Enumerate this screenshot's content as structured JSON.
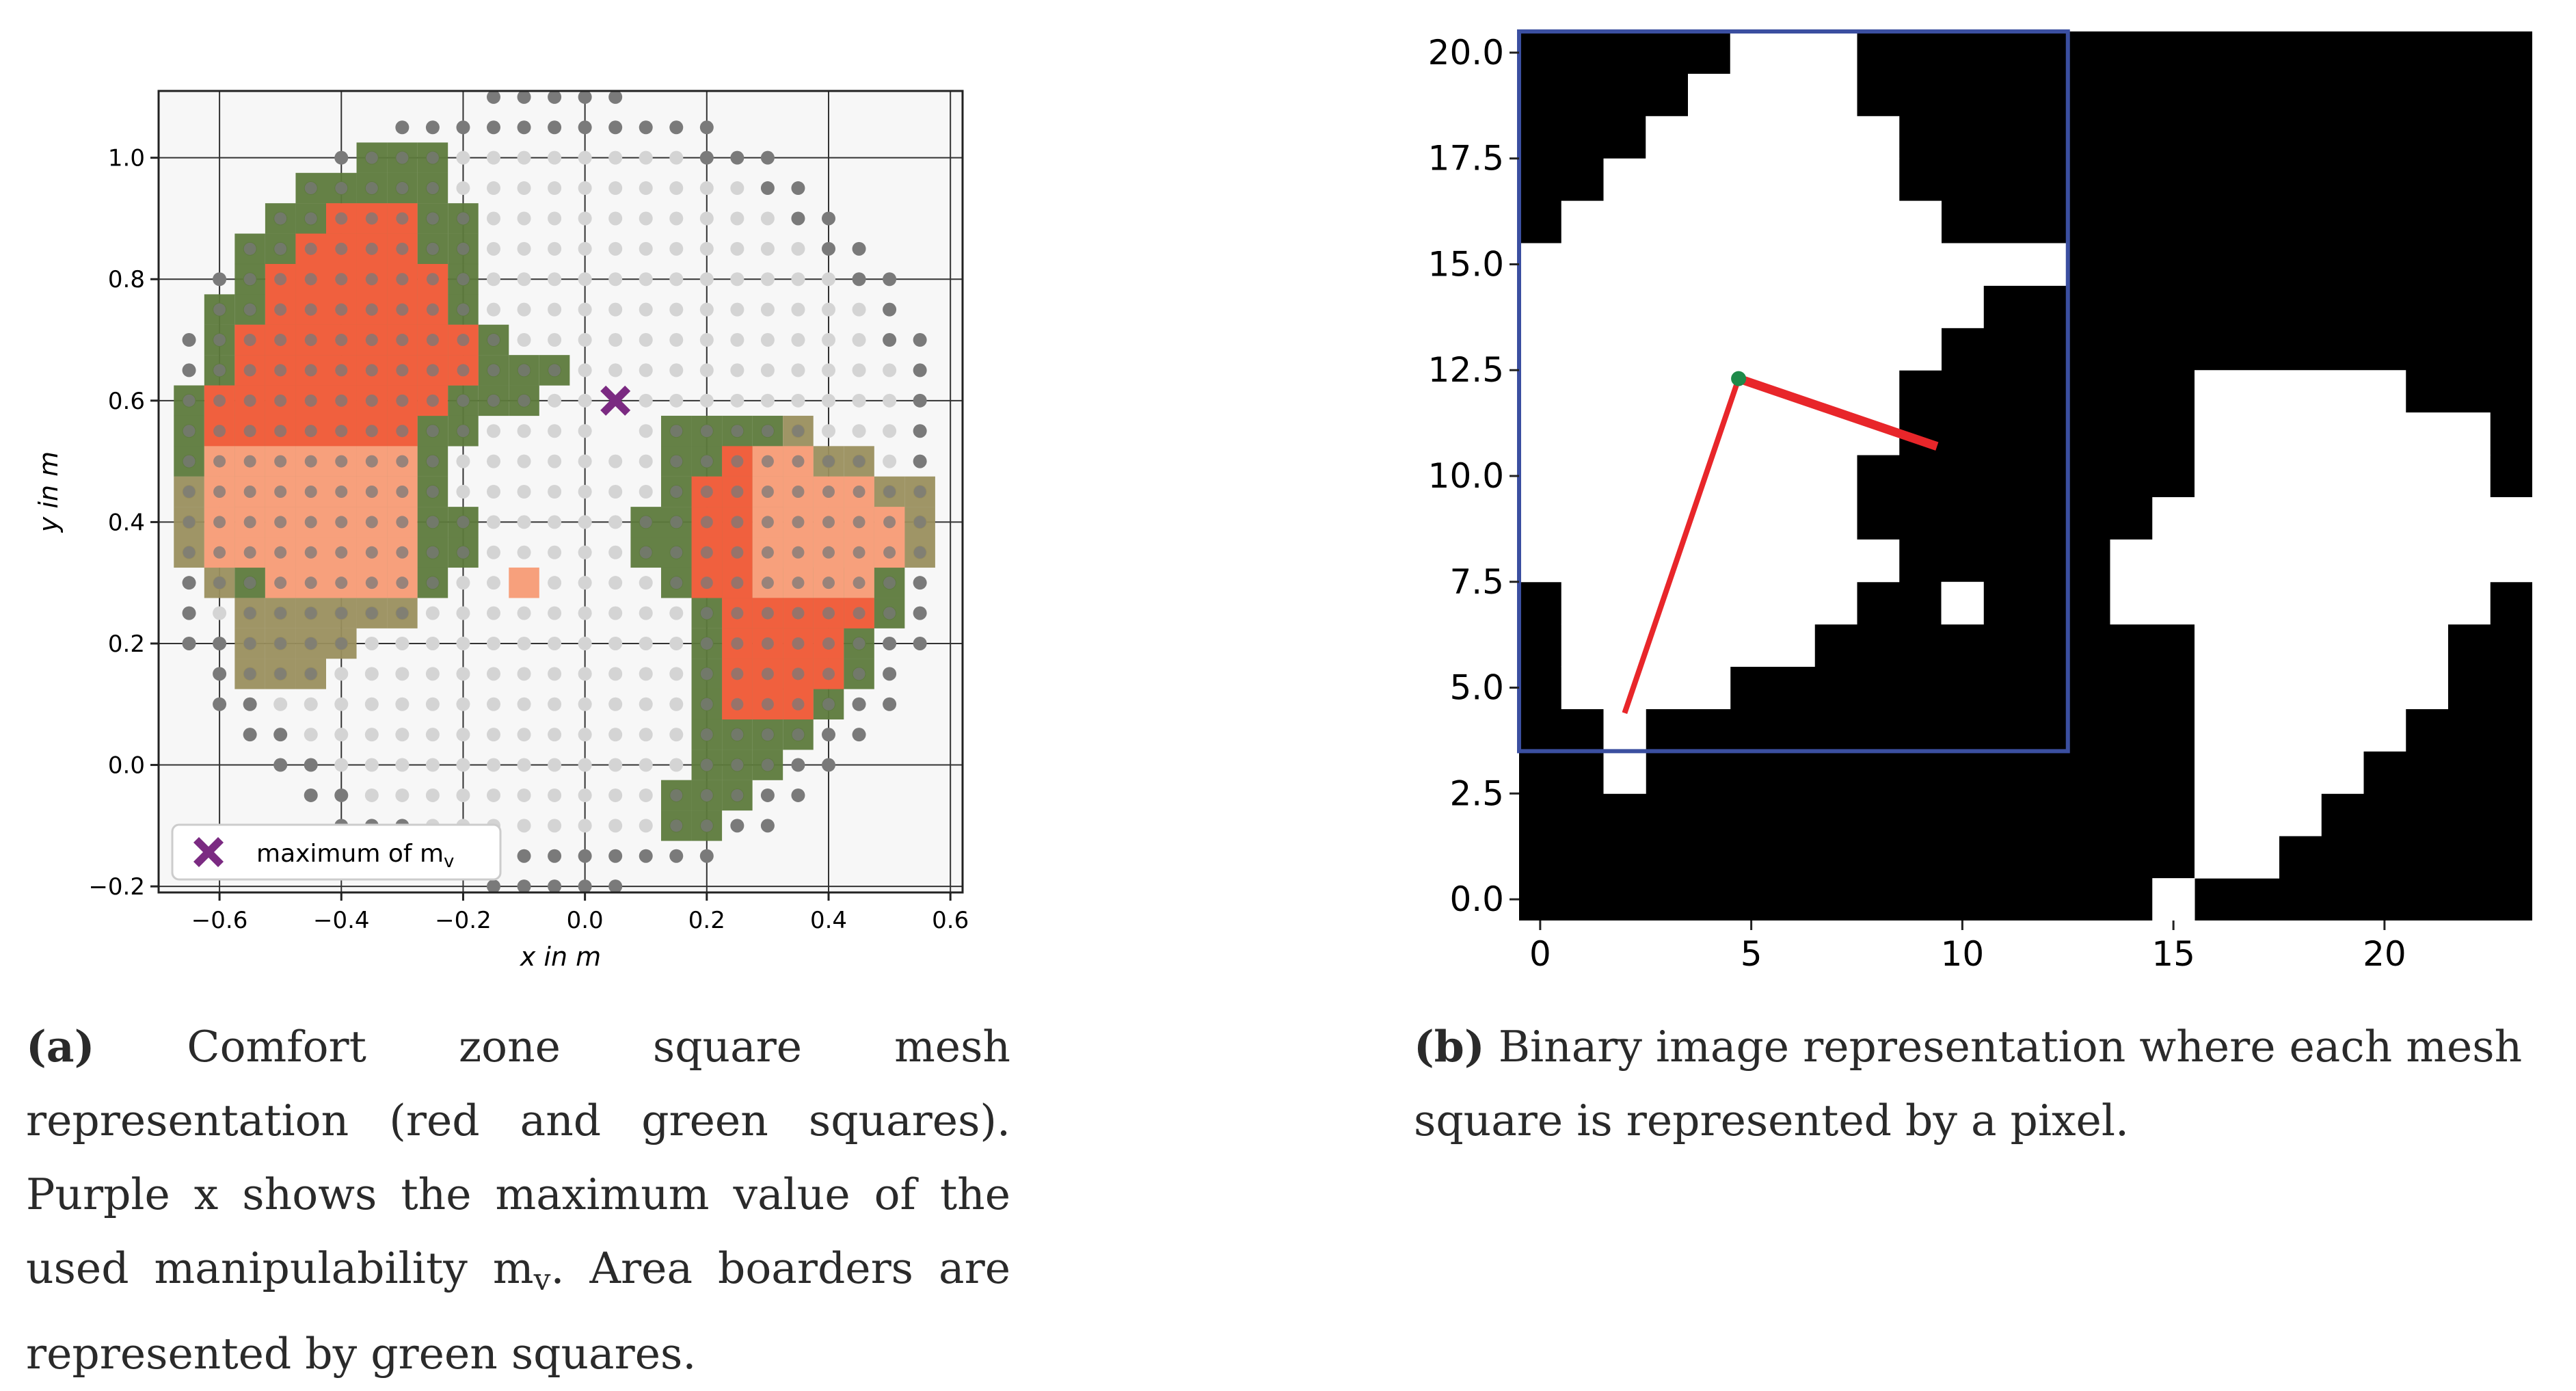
{
  "figure": {
    "panel_a": {
      "caption_label": "(a)",
      "caption_text": "Comfort zone square mesh representation (red and green squares). Purple x shows the maximum value of the used manipulability",
      "caption_symbol": "m",
      "caption_symbol_sub": "v",
      "caption_tail": ". Area boarders are represented by green squares."
    },
    "panel_b": {
      "caption_label": "(b)",
      "caption_text": "Binary image representation where each mesh square is represented by a pixel."
    }
  },
  "colors": {
    "grid_background": "#f7f7f7",
    "dot_dark": "#7a7a7a",
    "dot_light": "#d4d4d4",
    "border_green": "#5d7a3c",
    "border_tan": "#9a8f5e",
    "interior_red": "#f0603e",
    "interior_salmon": "#f7a07c",
    "maximum_marker": "#7b2a82",
    "image_black": "#000000",
    "image_white": "#ffffff",
    "box_blue": "#3b4fa0",
    "arm_red": "#e8262a",
    "joint_green": "#1e8a4a"
  },
  "chart_data": [
    {
      "type": "scatter",
      "title": "",
      "xlabel": "x in m",
      "ylabel": "y in m",
      "xlim": [
        -0.7,
        0.62
      ],
      "ylim": [
        -0.21,
        1.11
      ],
      "xticks": [
        -0.6,
        -0.4,
        -0.2,
        0.0,
        0.2,
        0.4,
        0.6
      ],
      "xtick_labels": [
        "−0.6",
        "−0.4",
        "−0.2",
        "0.0",
        "0.2",
        "0.4",
        "0.6"
      ],
      "yticks": [
        -0.2,
        0.0,
        0.2,
        0.4,
        0.6,
        0.8,
        1.0
      ],
      "ytick_labels": [
        "−0.2",
        "0.0",
        "0.2",
        "0.4",
        "0.6",
        "0.8",
        "1.0"
      ],
      "grid": true,
      "legend": {
        "location": "lower left",
        "entries": [
          {
            "label": "maximum of m",
            "label_sub": "v",
            "marker": "X"
          }
        ]
      },
      "maximum_point": {
        "x": 0.05,
        "y": 0.6
      },
      "mesh_step": 0.05,
      "series": [
        {
          "kind": "border-squares",
          "rows": [
            {
              "y": 1.0,
              "x_ranges": [
                [
                  -0.35,
                  -0.25
                ]
              ]
            },
            {
              "y": 0.95,
              "x_ranges": [
                [
                  -0.45,
                  -0.25
                ]
              ]
            },
            {
              "y": 0.9,
              "x_ranges": [
                [
                  -0.5,
                  -0.2
                ]
              ]
            },
            {
              "y": 0.85,
              "x_ranges": [
                [
                  -0.55,
                  -0.2
                ]
              ]
            },
            {
              "y": 0.8,
              "x_ranges": [
                [
                  -0.55,
                  -0.2
                ]
              ]
            },
            {
              "y": 0.75,
              "x_ranges": [
                [
                  -0.6,
                  -0.2
                ]
              ]
            },
            {
              "y": 0.7,
              "x_ranges": [
                [
                  -0.6,
                  -0.15
                ]
              ]
            },
            {
              "y": 0.65,
              "x_ranges": [
                [
                  -0.6,
                  -0.05
                ]
              ]
            },
            {
              "y": 0.6,
              "x_ranges": [
                [
                  -0.65,
                  -0.1
                ]
              ]
            },
            {
              "y": 0.55,
              "x_ranges": [
                [
                  -0.65,
                  -0.2
                ],
                [
                  0.15,
                  0.35
                ]
              ]
            },
            {
              "y": 0.5,
              "x_ranges": [
                [
                  -0.65,
                  -0.25
                ],
                [
                  0.15,
                  0.45
                ]
              ]
            },
            {
              "y": 0.45,
              "x_ranges": [
                [
                  -0.65,
                  -0.25
                ],
                [
                  0.15,
                  0.55
                ]
              ]
            },
            {
              "y": 0.4,
              "x_ranges": [
                [
                  -0.65,
                  -0.2
                ],
                [
                  0.1,
                  0.55
                ]
              ]
            },
            {
              "y": 0.35,
              "x_ranges": [
                [
                  -0.65,
                  -0.2
                ],
                [
                  0.1,
                  0.55
                ]
              ]
            },
            {
              "y": 0.3,
              "x_ranges": [
                [
                  -0.6,
                  -0.25
                ],
                [
                  0.15,
                  0.5
                ]
              ]
            },
            {
              "y": 0.25,
              "x_ranges": [
                [
                  -0.55,
                  -0.3
                ],
                [
                  0.2,
                  0.5
                ]
              ]
            },
            {
              "y": 0.2,
              "x_ranges": [
                [
                  -0.55,
                  -0.4
                ],
                [
                  0.2,
                  0.45
                ]
              ]
            },
            {
              "y": 0.15,
              "x_ranges": [
                [
                  -0.55,
                  -0.45
                ],
                [
                  0.2,
                  0.45
                ]
              ]
            },
            {
              "y": 0.1,
              "x_ranges": [
                [
                  0.2,
                  0.4
                ]
              ]
            },
            {
              "y": 0.05,
              "x_ranges": [
                [
                  0.2,
                  0.35
                ]
              ]
            },
            {
              "y": 0.0,
              "x_ranges": [
                [
                  0.2,
                  0.3
                ]
              ]
            },
            {
              "y": -0.05,
              "x_ranges": [
                [
                  0.15,
                  0.25
                ]
              ]
            },
            {
              "y": -0.1,
              "x_ranges": [
                [
                  0.15,
                  0.2
                ]
              ]
            }
          ]
        },
        {
          "kind": "interior-squares",
          "rows": [
            {
              "y": 0.9,
              "x_ranges": [
                [
                  -0.4,
                  -0.3
                ]
              ]
            },
            {
              "y": 0.85,
              "x_ranges": [
                [
                  -0.45,
                  -0.3
                ]
              ]
            },
            {
              "y": 0.8,
              "x_ranges": [
                [
                  -0.5,
                  -0.25
                ]
              ]
            },
            {
              "y": 0.75,
              "x_ranges": [
                [
                  -0.5,
                  -0.25
                ]
              ]
            },
            {
              "y": 0.7,
              "x_ranges": [
                [
                  -0.55,
                  -0.2
                ]
              ]
            },
            {
              "y": 0.65,
              "x_ranges": [
                [
                  -0.55,
                  -0.2
                ]
              ]
            },
            {
              "y": 0.6,
              "x_ranges": [
                [
                  -0.6,
                  -0.25
                ]
              ]
            },
            {
              "y": 0.55,
              "x_ranges": [
                [
                  -0.6,
                  -0.3
                ]
              ]
            },
            {
              "y": 0.5,
              "x_ranges": [
                [
                  -0.6,
                  -0.3
                ],
                [
                  0.25,
                  0.35
                ]
              ]
            },
            {
              "y": 0.45,
              "x_ranges": [
                [
                  -0.6,
                  -0.3
                ],
                [
                  0.2,
                  0.45
                ]
              ]
            },
            {
              "y": 0.4,
              "x_ranges": [
                [
                  -0.6,
                  -0.3
                ],
                [
                  0.2,
                  0.5
                ]
              ]
            },
            {
              "y": 0.35,
              "x_ranges": [
                [
                  -0.6,
                  -0.3
                ],
                [
                  0.2,
                  0.5
                ]
              ]
            },
            {
              "y": 0.3,
              "x_ranges": [
                [
                  -0.5,
                  -0.3
                ],
                [
                  0.2,
                  0.45
                ]
              ]
            },
            {
              "y": 0.25,
              "x_ranges": [
                [
                  0.25,
                  0.45
                ]
              ]
            },
            {
              "y": 0.2,
              "x_ranges": [
                [
                  0.25,
                  0.4
                ]
              ]
            },
            {
              "y": 0.15,
              "x_ranges": [
                [
                  0.25,
                  0.4
                ]
              ]
            },
            {
              "y": 0.1,
              "x_ranges": [
                [
                  0.25,
                  0.35
                ]
              ]
            },
            {
              "y": 0.3,
              "x_ranges": [
                [
                  -0.1,
                  -0.1
                ]
              ]
            }
          ]
        }
      ]
    },
    {
      "type": "heatmap",
      "title": "",
      "xlabel": "",
      "ylabel": "",
      "xlim": [
        -0.5,
        23.5
      ],
      "ylim": [
        -0.5,
        20.5
      ],
      "xticks": [
        0,
        5,
        10,
        15,
        20
      ],
      "xtick_labels": [
        "0",
        "5",
        "10",
        "15",
        "20"
      ],
      "yticks": [
        0.0,
        2.5,
        5.0,
        7.5,
        10.0,
        12.5,
        15.0,
        17.5,
        20.0
      ],
      "ytick_labels": [
        "0.0",
        "2.5",
        "5.0",
        "7.5",
        "10.0",
        "12.5",
        "15.0",
        "17.5",
        "20.0"
      ],
      "white_pixels_by_row": [
        {
          "y": 20,
          "x_ranges": [
            [
              5,
              7
            ]
          ]
        },
        {
          "y": 19,
          "x_ranges": [
            [
              4,
              7
            ]
          ]
        },
        {
          "y": 18,
          "x_ranges": [
            [
              3,
              8
            ]
          ]
        },
        {
          "y": 17,
          "x_ranges": [
            [
              2,
              8
            ]
          ]
        },
        {
          "y": 16,
          "x_ranges": [
            [
              1,
              9
            ]
          ]
        },
        {
          "y": 15,
          "x_ranges": [
            [
              0,
              12
            ]
          ]
        },
        {
          "y": 14,
          "x_ranges": [
            [
              0,
              10
            ]
          ]
        },
        {
          "y": 13,
          "x_ranges": [
            [
              0,
              9
            ]
          ]
        },
        {
          "y": 12,
          "x_ranges": [
            [
              0,
              8
            ]
          ]
        },
        {
          "y": 11,
          "x_ranges": [
            [
              0,
              8
            ]
          ]
        },
        {
          "y": 10,
          "x_ranges": [
            [
              0,
              7
            ]
          ]
        },
        {
          "y": 9,
          "x_ranges": [
            [
              0,
              7
            ]
          ]
        },
        {
          "y": 8,
          "x_ranges": [
            [
              0,
              8
            ]
          ]
        },
        {
          "y": 7,
          "x_ranges": [
            [
              1,
              7
            ],
            [
              10,
              10
            ]
          ]
        },
        {
          "y": 6,
          "x_ranges": [
            [
              1,
              6
            ]
          ]
        },
        {
          "y": 5,
          "x_ranges": [
            [
              1,
              4
            ]
          ]
        },
        {
          "y": 4,
          "x_ranges": [
            [
              2,
              2
            ]
          ]
        },
        {
          "y": 3,
          "x_ranges": [
            [
              2,
              2
            ]
          ]
        },
        {
          "y": 12,
          "x_ranges": [
            [
              16,
              20
            ]
          ]
        },
        {
          "y": 11,
          "x_ranges": [
            [
              16,
              22
            ]
          ]
        },
        {
          "y": 10,
          "x_ranges": [
            [
              16,
              22
            ]
          ]
        },
        {
          "y": 9,
          "x_ranges": [
            [
              15,
              23
            ]
          ]
        },
        {
          "y": 8,
          "x_ranges": [
            [
              14,
              23
            ]
          ]
        },
        {
          "y": 7,
          "x_ranges": [
            [
              14,
              22
            ]
          ]
        },
        {
          "y": 6,
          "x_ranges": [
            [
              16,
              21
            ]
          ]
        },
        {
          "y": 5,
          "x_ranges": [
            [
              16,
              21
            ]
          ]
        },
        {
          "y": 4,
          "x_ranges": [
            [
              16,
              20
            ]
          ]
        },
        {
          "y": 3,
          "x_ranges": [
            [
              16,
              19
            ]
          ]
        },
        {
          "y": 2,
          "x_ranges": [
            [
              16,
              18
            ]
          ]
        },
        {
          "y": 1,
          "x_ranges": [
            [
              16,
              17
            ]
          ]
        },
        {
          "y": 0,
          "x_ranges": [
            [
              15,
              15
            ]
          ]
        }
      ],
      "highlight_box": {
        "x0": -0.5,
        "x1": 12.5,
        "y0": 3.5,
        "y1": 20.5
      },
      "arm": {
        "base": {
          "x": 2.0,
          "y": 4.4
        },
        "elbow": {
          "x": 4.7,
          "y": 12.3
        },
        "tip": {
          "x": 9.4,
          "y": 10.7
        }
      }
    }
  ]
}
